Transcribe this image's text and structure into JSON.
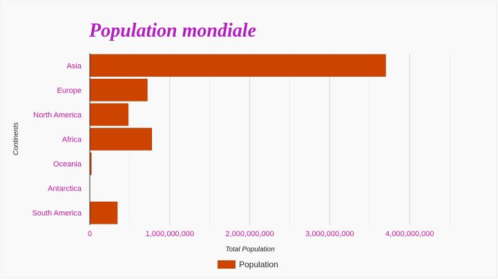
{
  "chart_data": {
    "type": "bar",
    "orientation": "horizontal",
    "title": "Population mondiale",
    "xlabel": "Total Population",
    "ylabel": "Continents",
    "categories": [
      "Asia",
      "Europe",
      "North America",
      "Africa",
      "Oceania",
      "Antarctica",
      "South America"
    ],
    "series": [
      {
        "name": "Population",
        "values": [
          3700000000,
          720000000,
          480000000,
          775000000,
          20000000,
          1000,
          345000000
        ]
      }
    ],
    "xlim": [
      0,
      5000000000
    ],
    "x_ticks": [
      0,
      1000000000,
      2000000000,
      3000000000,
      4000000000
    ],
    "x_tick_labels": [
      "0",
      "1,000,000,000",
      "2,000,000,000",
      "3,000,000,000",
      "4,000,000,000"
    ],
    "grid": true,
    "legend_position": "bottom",
    "colors": {
      "bar": "#cc4400",
      "title": "#b21fc0",
      "labels": "#c2189e",
      "grid": "#dddddd"
    }
  }
}
